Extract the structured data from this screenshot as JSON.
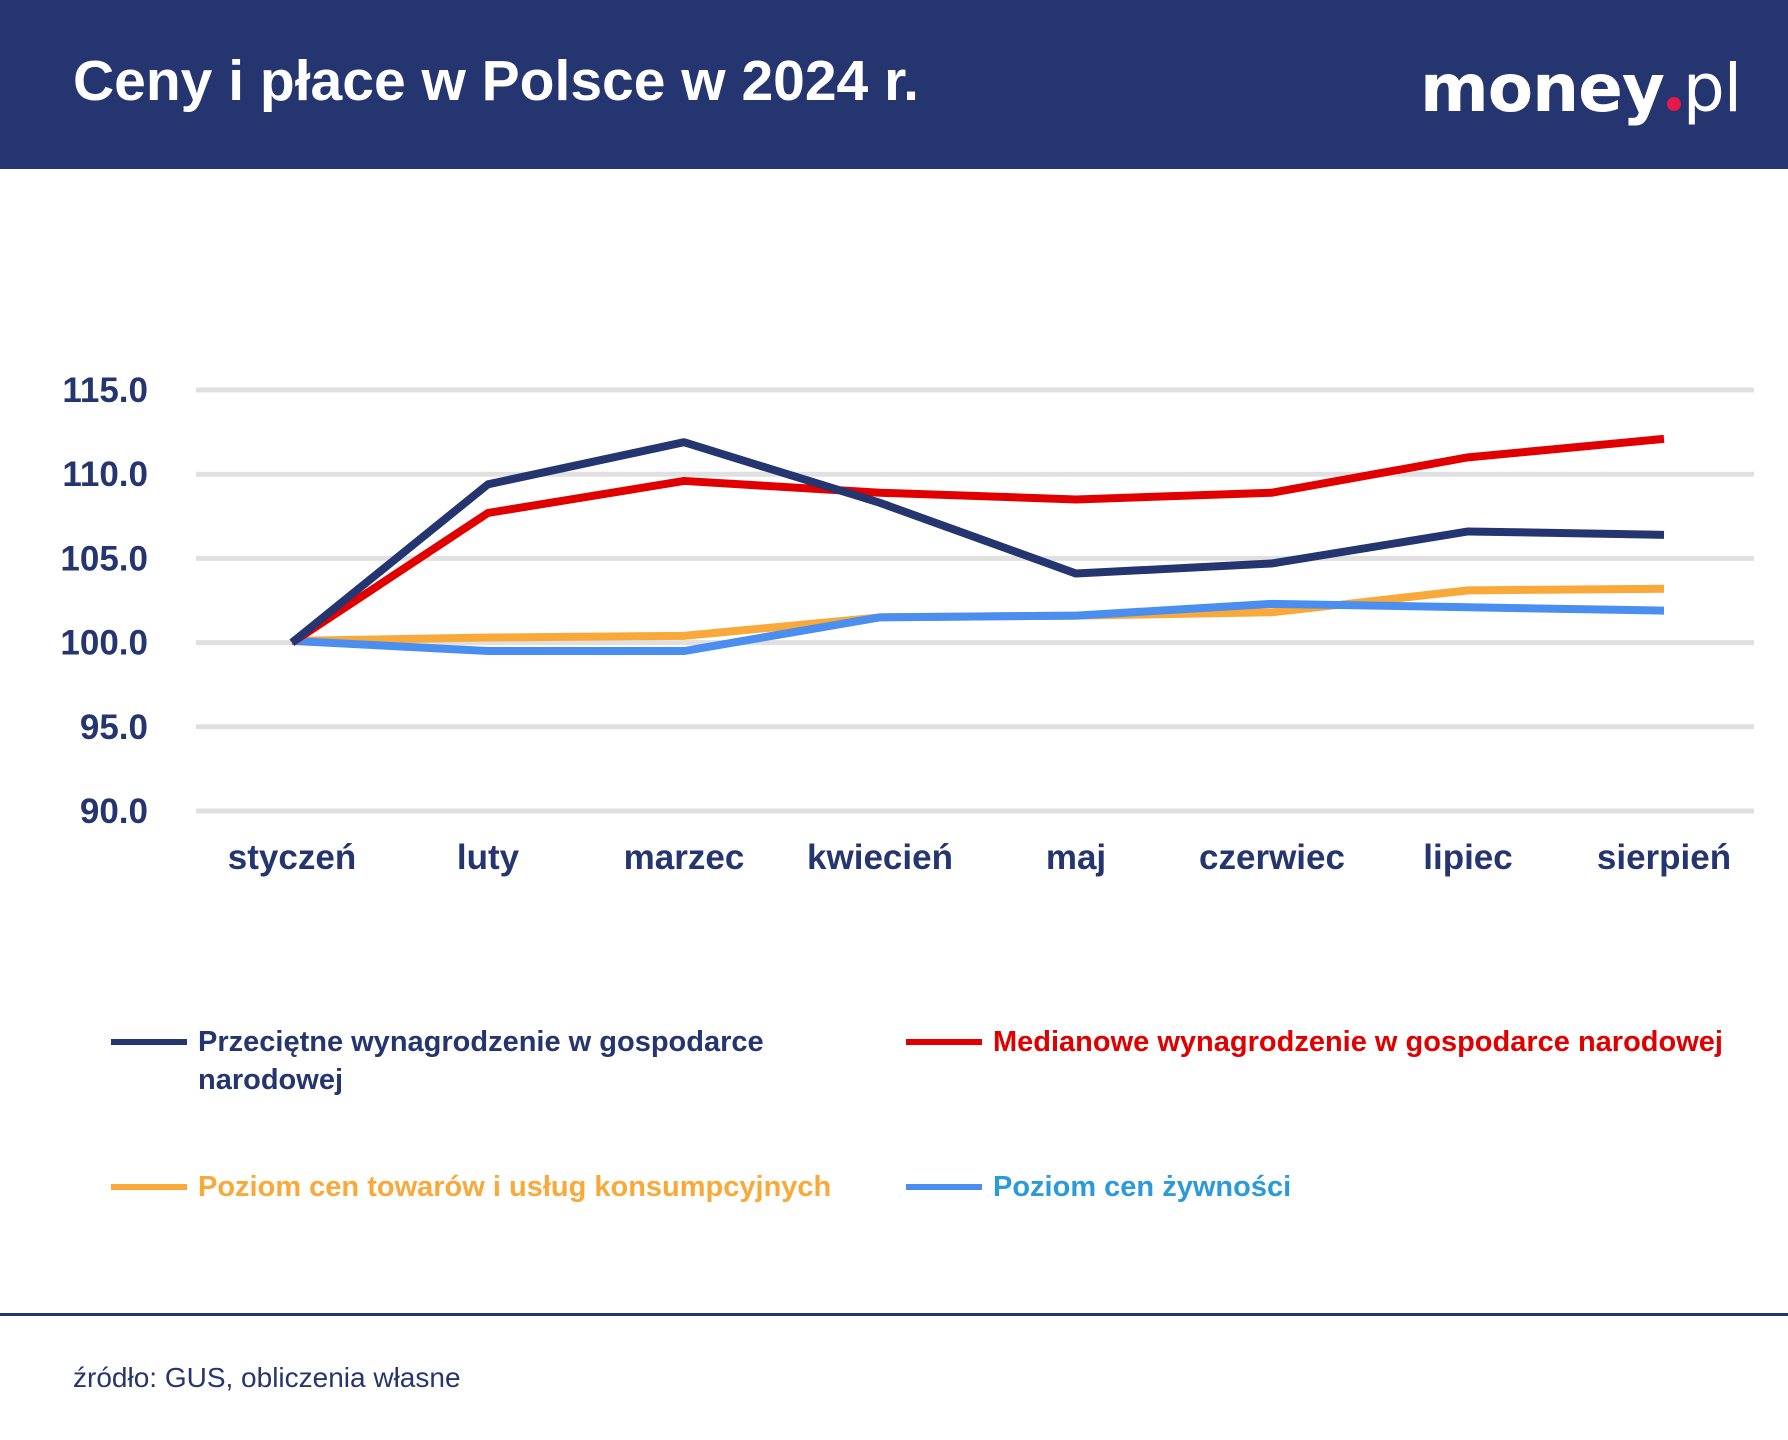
{
  "header": {
    "title": "Ceny i płace w Polsce w 2024 r.",
    "logo": "money.pl",
    "background": "#253570"
  },
  "chart_data": {
    "type": "line",
    "title": "",
    "xlabel": "",
    "ylabel": "",
    "categories": [
      "styczeń",
      "luty",
      "marzec",
      "kwiecień",
      "maj",
      "czerwiec",
      "lipiec",
      "sierpień"
    ],
    "yticks": [
      "90.0",
      "95.0",
      "100.0",
      "105.0",
      "110.0",
      "115.0"
    ],
    "ylim": [
      90,
      115
    ],
    "grid": true,
    "legend_placement": "bottom",
    "series": [
      {
        "name": "Przeciętne wynagrodzenie w gospodarce narodowej",
        "color": "#253570",
        "values": [
          100.0,
          109.4,
          111.9,
          108.3,
          104.1,
          104.7,
          106.6,
          106.4
        ]
      },
      {
        "name": "Medianowe wynagrodzenie w gospodarce narodowej",
        "color": "#e10000",
        "values": [
          100.0,
          107.7,
          109.6,
          108.9,
          108.5,
          108.9,
          111.0,
          112.1
        ]
      },
      {
        "name": "Poziom cen towarów i usług konsumpcyjnych",
        "color": "#f9a93a",
        "values": [
          100.1,
          100.3,
          100.4,
          101.5,
          101.6,
          101.8,
          103.1,
          103.2
        ]
      },
      {
        "name": "Poziom cen żywności",
        "color": "#4a8ef0",
        "label_color": "#2b9ad8",
        "values": [
          100.1,
          99.5,
          99.5,
          101.5,
          101.6,
          102.3,
          102.1,
          101.9
        ]
      }
    ]
  },
  "footer": {
    "source": "źródło: GUS, obliczenia własne"
  }
}
